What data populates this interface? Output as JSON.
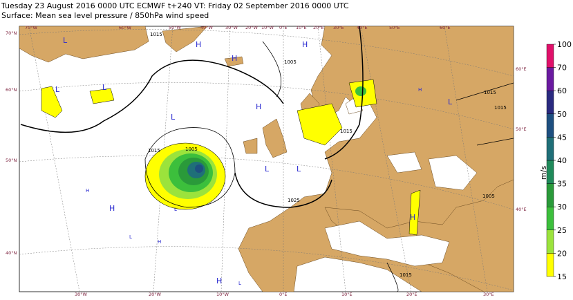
{
  "header": {
    "line1": "Tuesday 23 August 2016 0000 UTC  ECMWF  t+240  VT: Friday 02 September 2016 0000 UTC",
    "line2": "Surface: Mean sea level pressure / 850hPa wind speed"
  },
  "graticule": {
    "left": [
      "70°N",
      "60°N",
      "50°N",
      "40°N"
    ],
    "top": [
      "70°W",
      "60°W",
      "50°W",
      "40°W",
      "30°W",
      "20°W",
      "10°W",
      "0°E",
      "10°E",
      "20°E",
      "30°E",
      "40°E",
      "50°E",
      "60°E"
    ],
    "bottom": [
      "30°W",
      "20°W",
      "10°W",
      "0°E",
      "10°E",
      "20°E",
      "30°E"
    ],
    "right": [
      "60°E",
      "50°E",
      "40°E"
    ]
  },
  "pressure_centres": [
    "L",
    "L",
    "H",
    "L",
    "H",
    "L",
    "H",
    "H",
    "L",
    "H",
    "L",
    "L",
    "H",
    "H",
    "L",
    "L",
    "H",
    "L",
    "H",
    "H"
  ],
  "isobar_labels": [
    "1015",
    "1005",
    "1015",
    "1005",
    "1025",
    "1015",
    "1015",
    "1015",
    "1005",
    "1015"
  ],
  "colorbar": {
    "unit": "m/s",
    "ticks": [
      15,
      20,
      25,
      30,
      35,
      40,
      45,
      50,
      60,
      70,
      100
    ],
    "colors": [
      "#ffff00",
      "#9be33c",
      "#3cbf3c",
      "#2a9a3a",
      "#1f8a5a",
      "#1f6f78",
      "#1e4f80",
      "#2a2a80",
      "#6a1aa0",
      "#e0106a"
    ]
  }
}
